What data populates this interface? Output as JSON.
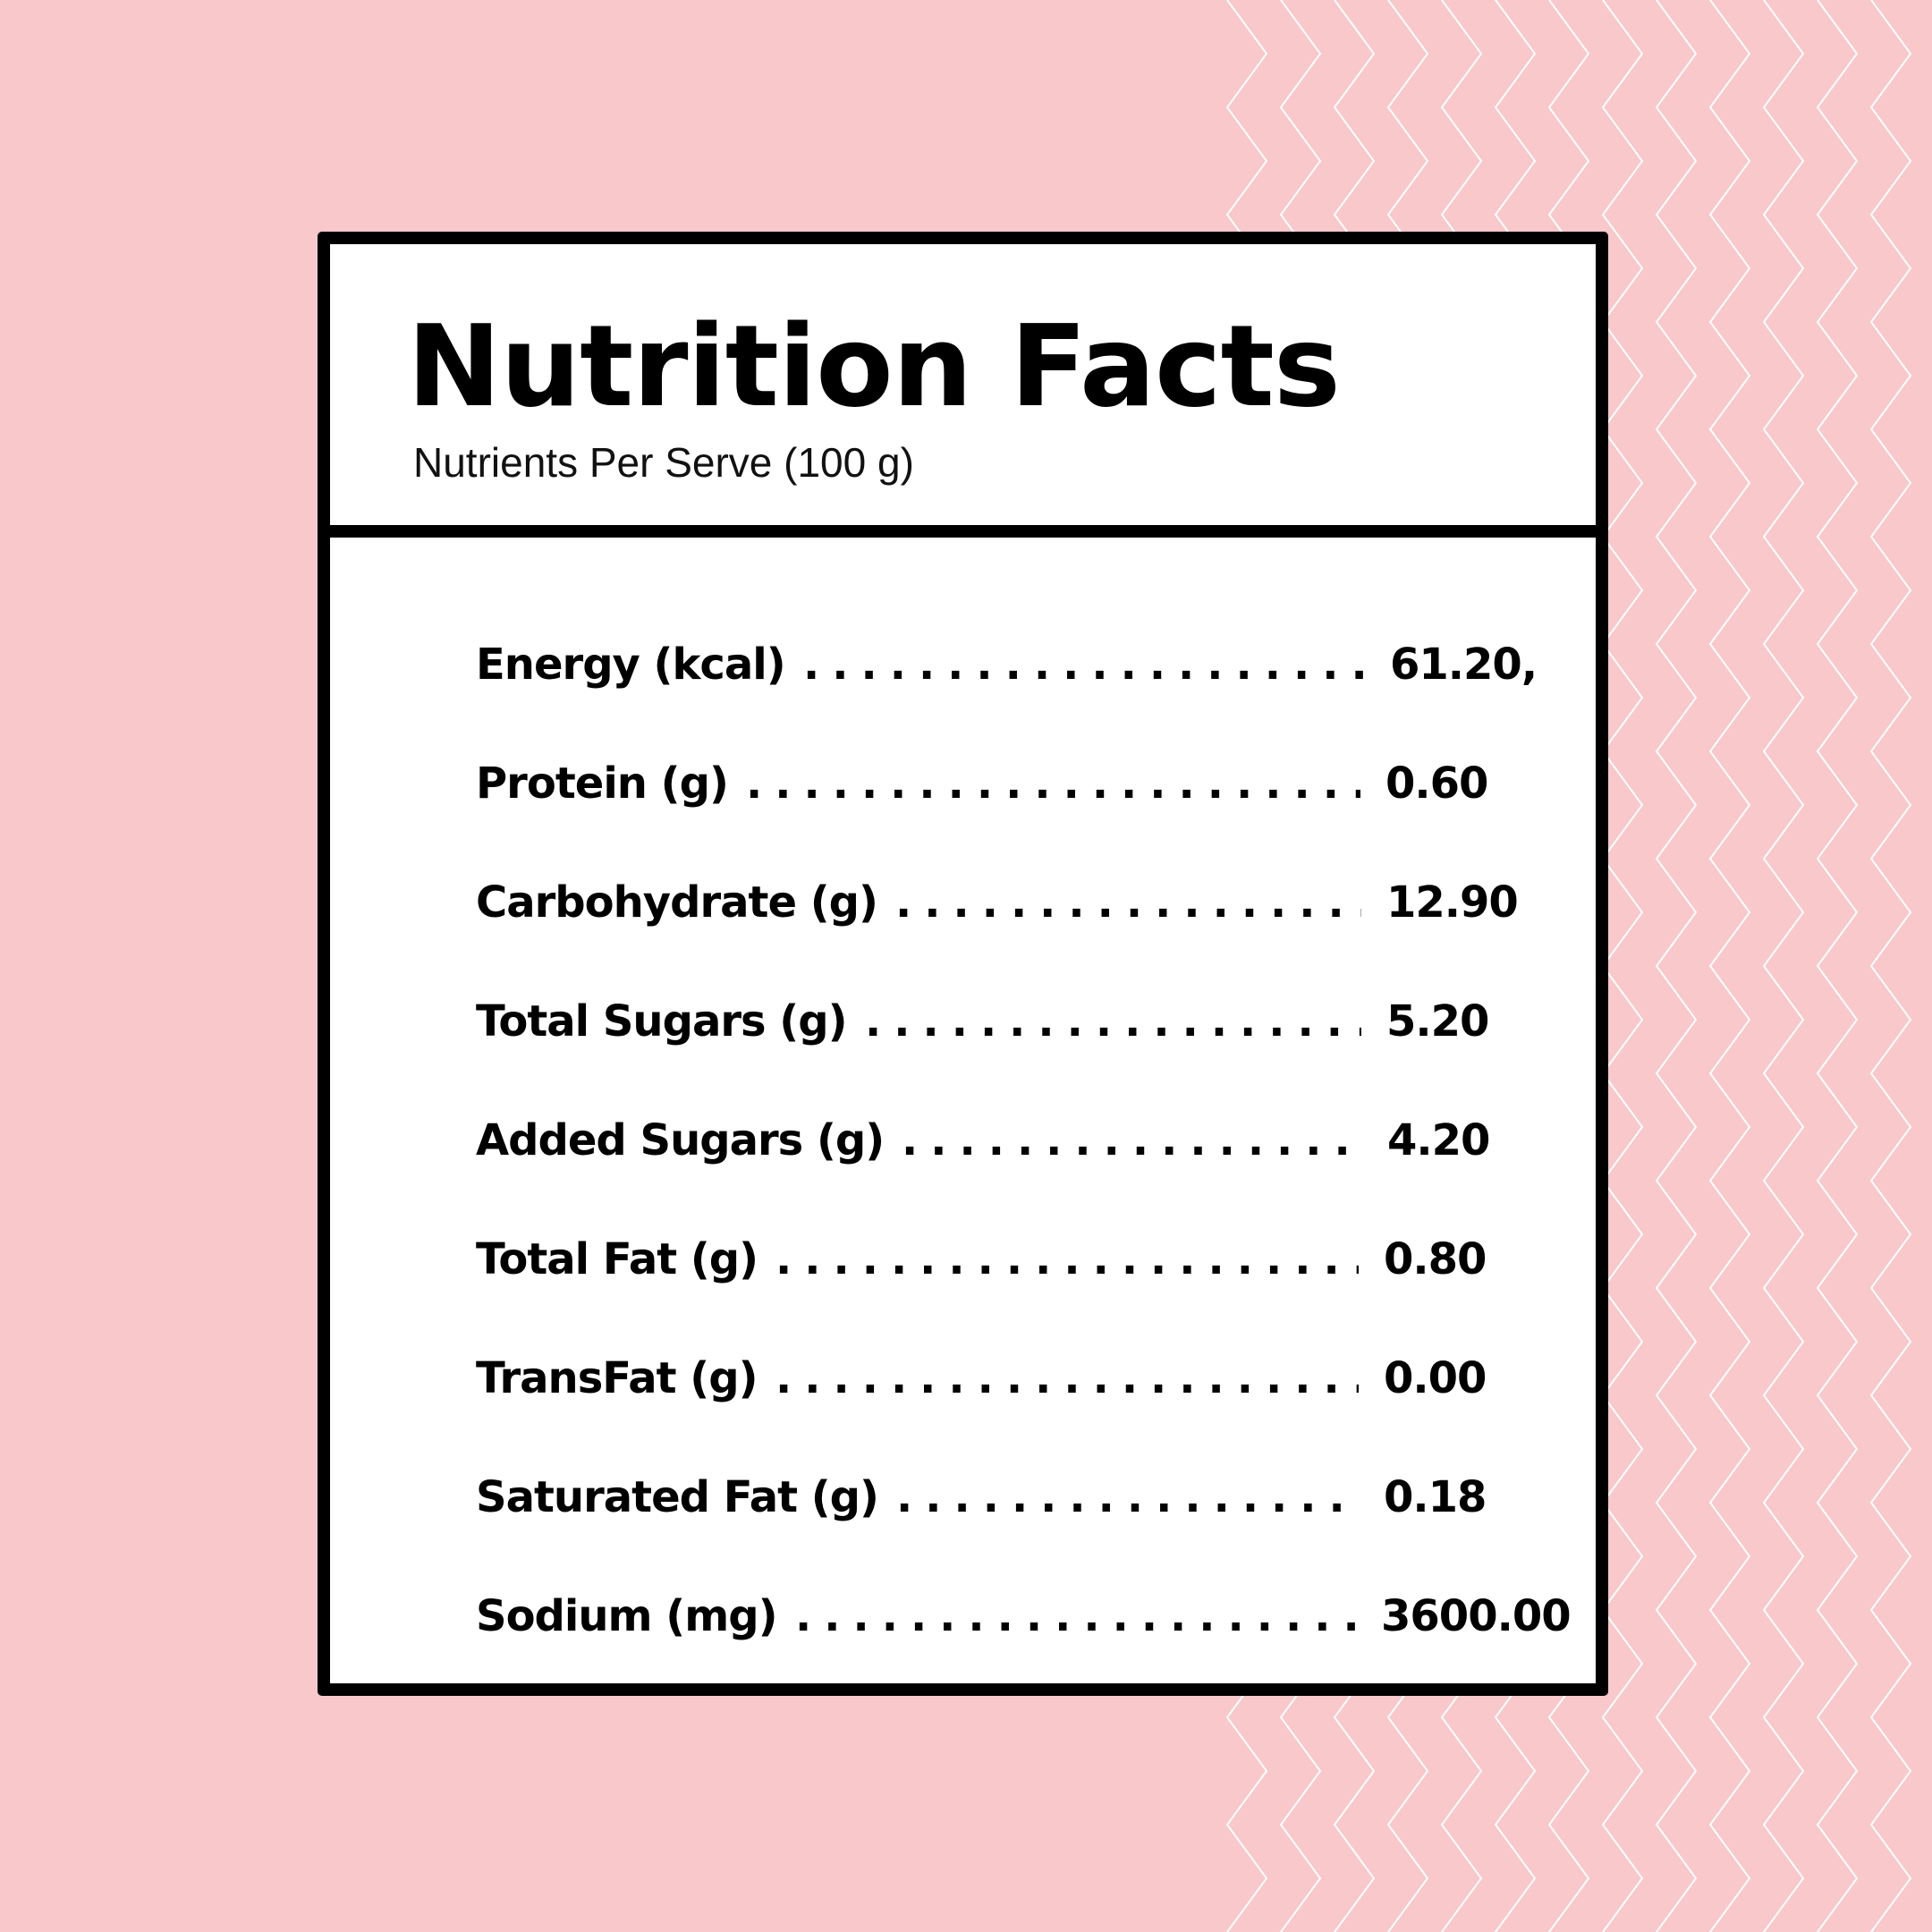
{
  "label": {
    "title": "Nutrition Facts",
    "subtitle": "Nutrients Per Serve (100 g)",
    "nutrients": [
      {
        "name": "Energy (kcal)",
        "value": "61.20,"
      },
      {
        "name": "Protein (g)",
        "value": "0.60"
      },
      {
        "name": "Carbohydrate (g)",
        "value": "12.90"
      },
      {
        "name": "Total Sugars (g)",
        "value": "5.20"
      },
      {
        "name": "Added Sugars (g)",
        "value": "4.20"
      },
      {
        "name": "Total Fat (g)",
        "value": "0.80"
      },
      {
        "name": "TransFat (g)",
        "value": "0.00"
      },
      {
        "name": "Saturated Fat (g)",
        "value": "0.18"
      },
      {
        "name": "Sodium (mg)",
        "value": "3600.00"
      }
    ]
  },
  "colors": {
    "background": "#f8c8cb",
    "pattern": "#ffffff",
    "card": "#ffffff",
    "border": "#000000",
    "text": "#000000"
  },
  "decor": {
    "background_pattern": "zigzag-lines"
  }
}
